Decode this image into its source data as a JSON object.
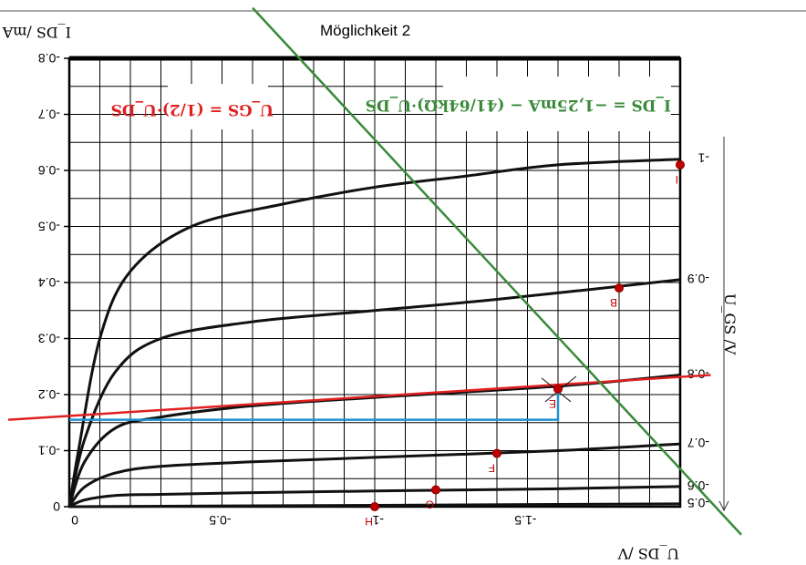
{
  "chart_data": {
    "type": "line",
    "title": "Möglichkeit 2",
    "xlabel": "U_DS /V",
    "ylabel": "I_DS /mA",
    "right_axis_label": "U_GS /V",
    "xlim": [
      0,
      -2.0
    ],
    "ylim": [
      0,
      -0.8
    ],
    "x_ticks": [
      {
        "value": 0,
        "label": "0"
      },
      {
        "value": -0.5,
        "label": "-0.5"
      },
      {
        "value": -1,
        "label": "-1"
      },
      {
        "value": -1.5,
        "label": "-1.5"
      }
    ],
    "y_ticks": [
      {
        "value": 0,
        "label": "0"
      },
      {
        "value": -0.1,
        "label": "-0.1"
      },
      {
        "value": -0.2,
        "label": "-0.2"
      },
      {
        "value": -0.3,
        "label": "-0.3"
      },
      {
        "value": -0.4,
        "label": "-0.4"
      },
      {
        "value": -0.5,
        "label": "-0.5"
      },
      {
        "value": -0.6,
        "label": "-0.6"
      },
      {
        "value": -0.7,
        "label": "-0.7"
      },
      {
        "value": -0.8,
        "label": "-0.8"
      }
    ],
    "grid": true,
    "series": [
      {
        "name": "-1",
        "x": [
          0,
          -0.03,
          -0.1,
          -0.2,
          -0.4,
          -0.7,
          -1.0,
          -1.3,
          -1.6,
          -2.0
        ],
        "y": [
          0,
          -0.1,
          -0.3,
          -0.42,
          -0.5,
          -0.54,
          -0.57,
          -0.59,
          -0.61,
          -0.62
        ]
      },
      {
        "name": "-0.9",
        "x": [
          0,
          -0.05,
          -0.15,
          -0.3,
          -0.6,
          -1.0,
          -1.4,
          -2.0
        ],
        "y": [
          0,
          -0.12,
          -0.24,
          -0.3,
          -0.33,
          -0.35,
          -0.37,
          -0.405
        ]
      },
      {
        "name": "-0.8",
        "x": [
          0,
          -0.05,
          -0.15,
          -0.3,
          -0.6,
          -1.0,
          -1.6,
          -2.0
        ],
        "y": [
          0,
          -0.08,
          -0.14,
          -0.16,
          -0.18,
          -0.195,
          -0.215,
          -0.235
        ]
      },
      {
        "name": "-0.7",
        "x": [
          0,
          -0.05,
          -0.15,
          -0.3,
          -0.6,
          -1.0,
          -1.6,
          -2.0
        ],
        "y": [
          0,
          -0.035,
          -0.06,
          -0.072,
          -0.08,
          -0.088,
          -0.1,
          -0.112
        ]
      },
      {
        "name": "-0.6",
        "x": [
          0,
          -0.05,
          -0.15,
          -0.3,
          -0.6,
          -1.0,
          -1.6,
          -2.0
        ],
        "y": [
          0,
          -0.012,
          -0.02,
          -0.022,
          -0.025,
          -0.028,
          -0.032,
          -0.036
        ]
      },
      {
        "name": "-0.5",
        "x": [
          0,
          -2.0
        ],
        "y": [
          0,
          -0.005
        ]
      }
    ],
    "load_line": {
      "formula": "I_DS = −1,25mA − (41/64kΩ)·U_DS",
      "color": "#3a8a3a",
      "x": [
        -0.6,
        -2.2
      ],
      "y": [
        -0.89,
        0.05
      ]
    },
    "gate_line": {
      "formula": "U_GS = (1/2)·U_DS",
      "color": "#e02020",
      "x": [
        0.2,
        -2.1
      ],
      "y": [
        -0.155,
        -0.235
      ]
    },
    "construction": {
      "color": "#2090d0",
      "x": [
        0,
        -1.6,
        -1.6
      ],
      "y": [
        -0.155,
        -0.155,
        -0.21
      ]
    },
    "points": [
      {
        "label": "I",
        "x": -2.0,
        "y": -0.61
      },
      {
        "label": "B",
        "x": -1.8,
        "y": -0.39
      },
      {
        "label": "E",
        "x": -1.6,
        "y": -0.21
      },
      {
        "label": "F",
        "x": -1.4,
        "y": -0.095
      },
      {
        "label": "G",
        "x": -1.2,
        "y": -0.03
      },
      {
        "label": "H",
        "x": -1.0,
        "y": 0
      }
    ]
  }
}
